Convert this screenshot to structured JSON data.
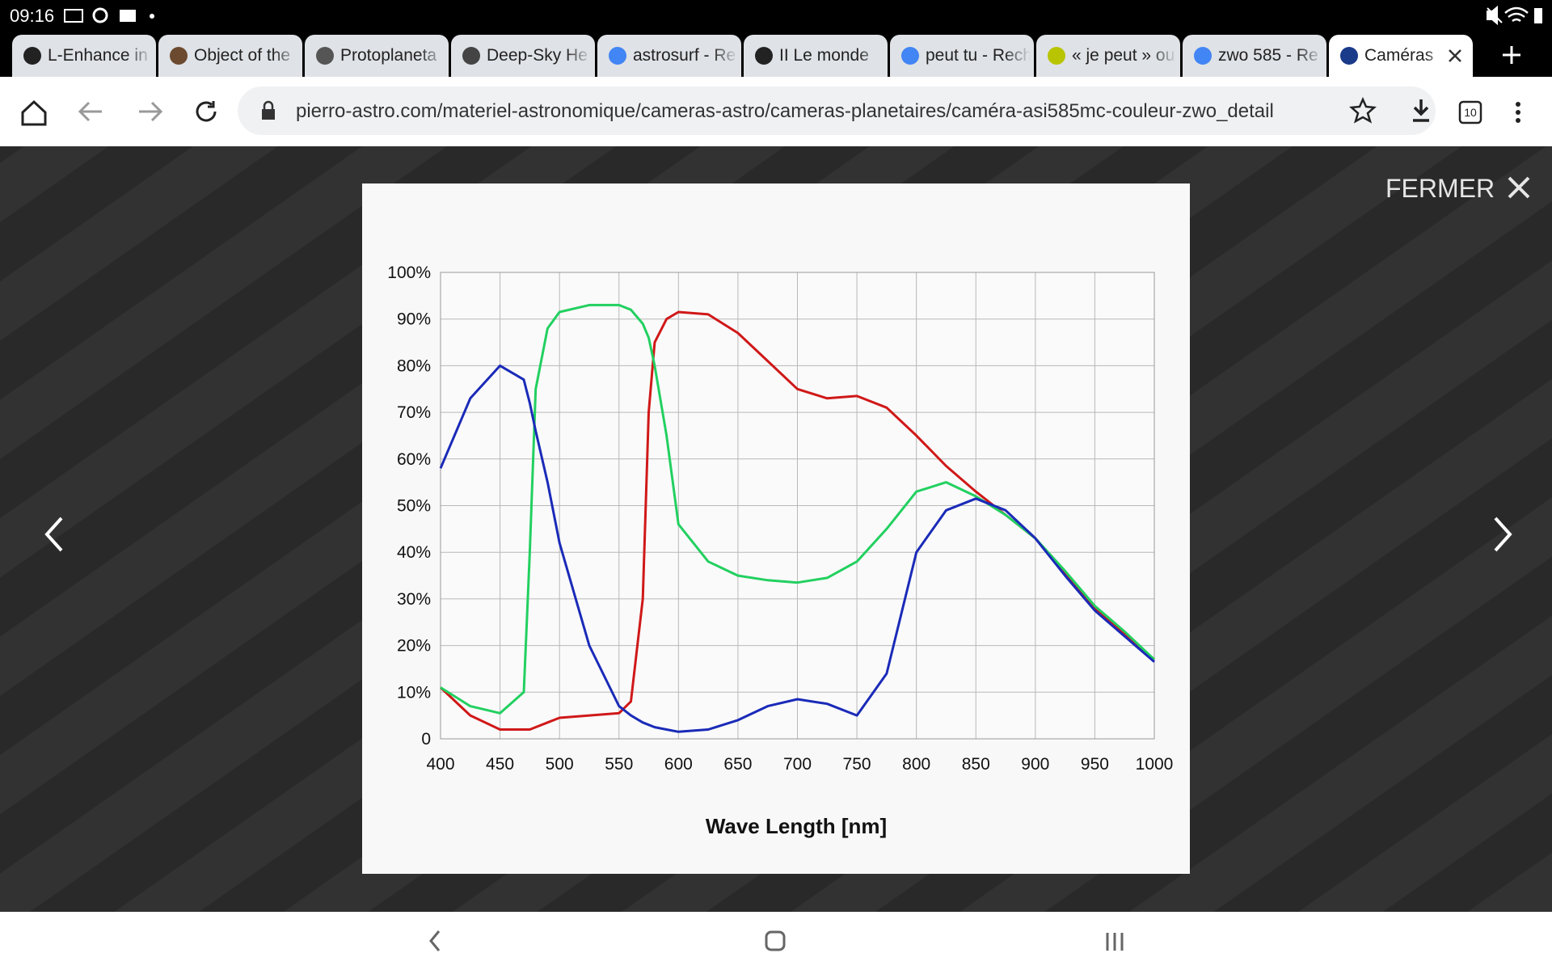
{
  "status": {
    "time": "09:16"
  },
  "tabs": [
    "L-Enhance in",
    "Object of the",
    "Protoplaneta",
    "Deep-Sky He",
    "astrosurf - Re",
    "II Le monde",
    "peut tu - Rech",
    "« je peut » ou",
    "zwo 585 - Re",
    "Caméras"
  ],
  "address": {
    "url": "pierro-astro.com/materiel-astronomique/cameras-astro/cameras-planetaires/caméra-asi585mc-couleur-zwo_detail",
    "tab_count": "10"
  },
  "gallery": {
    "close": "FERMER"
  },
  "chart_data": {
    "type": "line",
    "x_label": "Wave Length [nm]",
    "x": [
      400,
      425,
      450,
      470,
      475,
      480,
      490,
      500,
      525,
      550,
      560,
      570,
      575,
      580,
      590,
      600,
      625,
      650,
      675,
      700,
      725,
      750,
      775,
      800,
      825,
      850,
      875,
      900,
      925,
      950,
      975,
      1000
    ],
    "series": [
      {
        "color": "#d01818",
        "values": [
          11,
          5,
          2,
          2,
          2,
          2.5,
          3.5,
          4.5,
          5,
          5.5,
          8,
          30,
          70,
          85,
          90,
          91.5,
          91,
          87,
          81,
          75,
          73,
          73.5,
          71,
          65,
          58.5,
          53,
          48,
          43,
          35.5,
          28,
          22.5,
          17
        ]
      },
      {
        "color": "#22d060",
        "values": [
          11,
          7,
          5.5,
          10,
          40,
          75,
          88,
          91.5,
          93,
          93,
          92,
          89,
          86,
          80,
          65,
          46,
          38,
          35,
          34,
          33.5,
          34.5,
          38,
          45,
          53,
          55,
          52,
          48,
          43,
          36,
          28.5,
          23,
          17
        ]
      },
      {
        "color": "#1a2ab8",
        "values": [
          58,
          73,
          80,
          77,
          72,
          66,
          55,
          42,
          20,
          7,
          5,
          3.5,
          3,
          2.5,
          2,
          1.5,
          2,
          4,
          7,
          8.5,
          7.5,
          5,
          14,
          40,
          49,
          51.5,
          49,
          43,
          35,
          27.5,
          22,
          16.5
        ]
      }
    ],
    "xlim": [
      400,
      1000
    ],
    "xticks": [
      400,
      450,
      500,
      550,
      600,
      650,
      700,
      750,
      800,
      850,
      900,
      950,
      1000
    ],
    "ylim": [
      0,
      100
    ],
    "yticks": [
      0,
      {
        "value": 10,
        "label": "10%"
      },
      {
        "value": 20,
        "label": "20%"
      },
      {
        "value": 30,
        "label": "30%"
      },
      {
        "value": 40,
        "label": "40%"
      },
      {
        "value": 50,
        "label": "50%"
      },
      {
        "value": 60,
        "label": "60%"
      },
      {
        "value": 70,
        "label": "70%"
      },
      {
        "value": 80,
        "label": "80%"
      },
      {
        "value": 90,
        "label": "90%"
      },
      {
        "value": 100,
        "label": "100%"
      }
    ],
    "grid": true
  }
}
